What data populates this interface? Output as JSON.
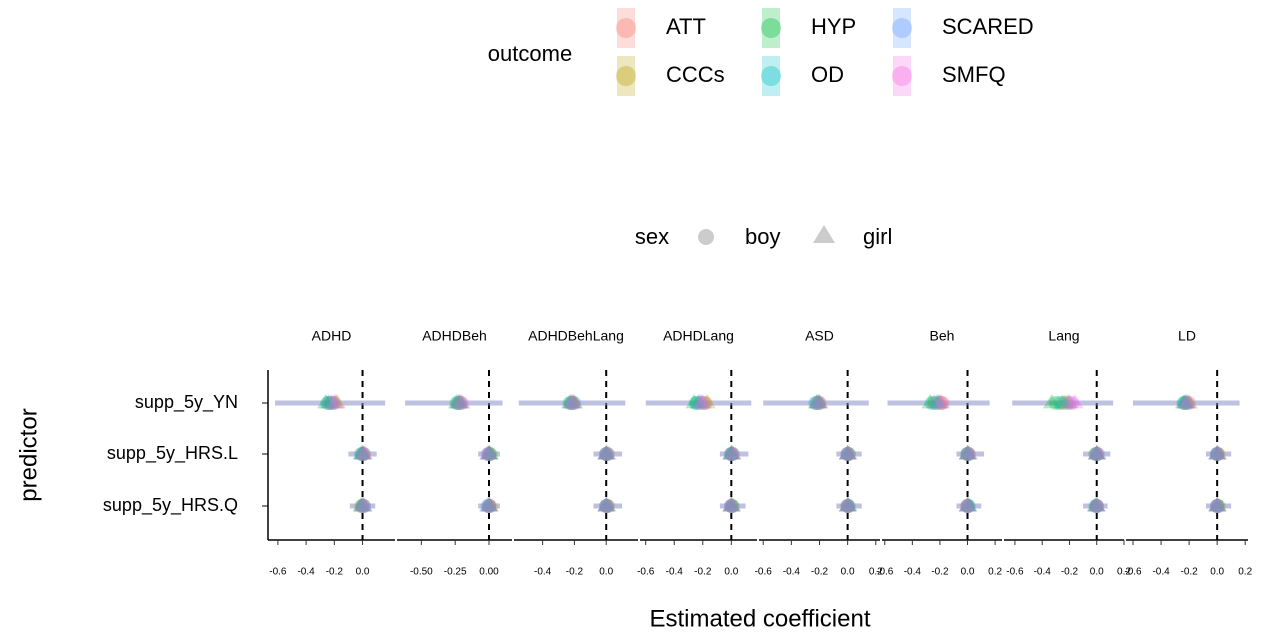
{
  "chart_data": {
    "type": "forest",
    "x_label": "Estimated coefficient",
    "y_label": "predictor",
    "predictors": [
      "supp_5y_YN",
      "supp_5y_HRS.L",
      "supp_5y_HRS.Q"
    ],
    "outcome_legend": {
      "title": "outcome",
      "entries": [
        {
          "name": "ATT",
          "color": "#F8766D"
        },
        {
          "name": "CCCs",
          "color": "#B79F00"
        },
        {
          "name": "HYP",
          "color": "#00BA38"
        },
        {
          "name": "OD",
          "color": "#00BFC4"
        },
        {
          "name": "SCARED",
          "color": "#619CFF"
        },
        {
          "name": "SMFQ",
          "color": "#F564E3"
        }
      ]
    },
    "sex_legend": {
      "title": "sex",
      "entries": [
        "boy",
        "girl"
      ]
    },
    "facets": [
      {
        "title": "ADHD",
        "xlim": [
          -0.67,
          0.23
        ],
        "xticks": [
          -0.6,
          -0.4,
          -0.2,
          {
            "value": 0,
            "label": "0.0"
          }
        ],
        "ci": [
          [
            -0.62,
            0.16
          ],
          [
            -0.1,
            0.1
          ],
          [
            -0.09,
            0.09
          ]
        ],
        "boy": [
          [
            -0.24,
            -0.2,
            -0.22,
            -0.25,
            -0.23,
            -0.21
          ],
          [
            0.0,
            0.01,
            -0.01,
            0.0,
            0.01,
            0.0
          ],
          [
            0.0,
            -0.01,
            0.01,
            0.0,
            0.0,
            0.01
          ]
        ],
        "girl": [
          [
            -0.22,
            -0.18,
            -0.26,
            -0.24,
            -0.2,
            -0.19
          ],
          [
            0.01,
            0.0,
            0.0,
            -0.01,
            0.0,
            0.01
          ],
          [
            0.01,
            0.0,
            -0.01,
            0.0,
            0.01,
            0.0
          ]
        ]
      },
      {
        "title": "ADHDBeh",
        "xlim": [
          -0.68,
          0.17
        ],
        "xticks": [
          {
            "value": -0.5,
            "label": "-0.50"
          },
          -0.25,
          {
            "value": 0,
            "label": "0.00"
          }
        ],
        "ci": [
          [
            -0.62,
            0.1
          ],
          [
            -0.08,
            0.08
          ],
          [
            -0.08,
            0.08
          ]
        ],
        "boy": [
          [
            -0.22,
            -0.21,
            -0.24,
            -0.23,
            -0.22,
            -0.2
          ],
          [
            0.0,
            0.0,
            0.01,
            0.0,
            -0.01,
            0.0
          ],
          [
            0.0,
            0.01,
            0.0,
            -0.01,
            0.0,
            0.0
          ]
        ],
        "girl": [
          [
            -0.21,
            -0.23,
            -0.22,
            -0.24,
            -0.2,
            -0.22
          ],
          [
            0.0,
            0.01,
            0.0,
            0.0,
            0.0,
            -0.01
          ],
          [
            0.01,
            0.0,
            0.0,
            0.0,
            -0.01,
            0.0
          ]
        ]
      },
      {
        "title": "ADHDBehLang",
        "xlim": [
          -0.58,
          0.2
        ],
        "xticks": [
          -0.4,
          -0.2,
          {
            "value": 0,
            "label": "0.0"
          }
        ],
        "ci": [
          [
            -0.55,
            0.12
          ],
          [
            -0.08,
            0.1
          ],
          [
            -0.08,
            0.1
          ]
        ],
        "boy": [
          [
            -0.22,
            -0.21,
            -0.23,
            -0.22,
            -0.2,
            -0.21
          ],
          [
            0.0,
            0.01,
            0.0,
            0.0,
            0.01,
            0.0
          ],
          [
            0.0,
            0.0,
            0.01,
            0.0,
            0.0,
            0.01
          ]
        ],
        "girl": [
          [
            -0.21,
            -0.22,
            -0.2,
            -0.23,
            -0.22,
            -0.21
          ],
          [
            0.01,
            0.0,
            0.0,
            0.0,
            0.0,
            0.0
          ],
          [
            0.0,
            0.01,
            0.0,
            0.0,
            0.0,
            0.0
          ]
        ]
      },
      {
        "title": "ADHDLang",
        "xlim": [
          -0.64,
          0.18
        ],
        "xticks": [
          -0.6,
          -0.4,
          -0.2,
          {
            "value": 0,
            "label": "0.0"
          }
        ],
        "ci": [
          [
            -0.6,
            0.14
          ],
          [
            -0.08,
            0.12
          ],
          [
            -0.08,
            0.1
          ]
        ],
        "boy": [
          [
            -0.2,
            -0.18,
            -0.24,
            -0.25,
            -0.22,
            -0.19
          ],
          [
            0.0,
            0.01,
            0.0,
            0.0,
            0.01,
            0.0
          ],
          [
            0.0,
            0.0,
            0.01,
            0.0,
            0.0,
            0.0
          ]
        ],
        "girl": [
          [
            -0.22,
            -0.17,
            -0.26,
            -0.23,
            -0.2,
            -0.21
          ],
          [
            0.01,
            0.0,
            0.0,
            0.0,
            0.0,
            0.01
          ],
          [
            0.0,
            0.01,
            0.0,
            0.0,
            0.0,
            0.0
          ]
        ]
      },
      {
        "title": "ASD",
        "xlim": [
          -0.63,
          0.23
        ],
        "xticks": [
          -0.6,
          -0.4,
          -0.2,
          {
            "value": 0,
            "label": "0.0"
          },
          0.2
        ],
        "ci": [
          [
            -0.6,
            0.15
          ],
          [
            -0.08,
            0.1
          ],
          [
            -0.08,
            0.1
          ]
        ],
        "boy": [
          [
            -0.22,
            -0.2,
            -0.21,
            -0.23,
            -0.22,
            -0.2
          ],
          [
            0.0,
            0.0,
            0.01,
            0.0,
            0.0,
            0.0
          ],
          [
            0.0,
            0.01,
            0.0,
            0.0,
            0.0,
            0.0
          ]
        ],
        "girl": [
          [
            -0.21,
            -0.22,
            -0.2,
            -0.22,
            -0.21,
            -0.2
          ],
          [
            0.01,
            0.0,
            0.0,
            0.0,
            0.0,
            0.0
          ],
          [
            0.0,
            0.0,
            0.0,
            0.01,
            0.0,
            0.0
          ]
        ]
      },
      {
        "title": "Beh",
        "xlim": [
          -0.62,
          0.25
        ],
        "xticks": [
          -0.6,
          -0.4,
          -0.2,
          {
            "value": 0,
            "label": "0.0"
          },
          0.2
        ],
        "ci": [
          [
            -0.58,
            0.16
          ],
          [
            -0.08,
            0.12
          ],
          [
            -0.08,
            0.1
          ]
        ],
        "boy": [
          [
            -0.2,
            -0.19,
            -0.24,
            -0.26,
            -0.22,
            -0.18
          ],
          [
            0.0,
            0.01,
            0.0,
            0.0,
            0.0,
            0.01
          ],
          [
            0.0,
            0.0,
            0.0,
            0.01,
            0.0,
            0.0
          ]
        ],
        "girl": [
          [
            -0.24,
            -0.2,
            -0.27,
            -0.22,
            -0.21,
            -0.19
          ],
          [
            0.01,
            0.0,
            0.0,
            0.0,
            0.01,
            0.0
          ],
          [
            0.0,
            0.0,
            0.01,
            0.0,
            0.0,
            0.0
          ]
        ]
      },
      {
        "title": "Lang",
        "xlim": [
          -0.68,
          0.2
        ],
        "xticks": [
          -0.6,
          -0.4,
          -0.2,
          {
            "value": 0,
            "label": "0.0"
          },
          0.2
        ],
        "ci": [
          [
            -0.62,
            0.12
          ],
          [
            -0.1,
            0.1
          ],
          [
            -0.1,
            0.08
          ]
        ],
        "boy": [
          [
            -0.22,
            -0.25,
            -0.3,
            -0.27,
            -0.2,
            -0.18
          ],
          [
            0.0,
            0.0,
            -0.01,
            0.0,
            0.01,
            0.0
          ],
          [
            0.0,
            0.0,
            0.0,
            -0.01,
            0.0,
            0.0
          ]
        ],
        "girl": [
          [
            -0.2,
            -0.23,
            -0.33,
            -0.25,
            -0.21,
            -0.16
          ],
          [
            0.01,
            0.0,
            0.0,
            0.0,
            0.0,
            0.0
          ],
          [
            0.0,
            0.0,
            -0.01,
            0.0,
            0.0,
            0.0
          ]
        ]
      },
      {
        "title": "LD",
        "xlim": [
          -0.65,
          0.22
        ],
        "xticks": [
          -0.6,
          -0.4,
          -0.2,
          {
            "value": 0,
            "label": "0.0"
          },
          0.2
        ],
        "ci": [
          [
            -0.6,
            0.16
          ],
          [
            -0.08,
            0.1
          ],
          [
            -0.08,
            0.1
          ]
        ],
        "boy": [
          [
            -0.23,
            -0.21,
            -0.24,
            -0.22,
            -0.23,
            -0.2
          ],
          [
            0.0,
            0.01,
            0.0,
            0.0,
            0.0,
            0.0
          ],
          [
            0.0,
            0.0,
            0.01,
            0.0,
            0.0,
            0.0
          ]
        ],
        "girl": [
          [
            -0.22,
            -0.2,
            -0.23,
            -0.24,
            -0.21,
            -0.22
          ],
          [
            0.01,
            0.0,
            0.0,
            0.0,
            0.0,
            0.0
          ],
          [
            0.0,
            0.01,
            0.0,
            0.0,
            0.0,
            0.0
          ]
        ]
      }
    ]
  }
}
